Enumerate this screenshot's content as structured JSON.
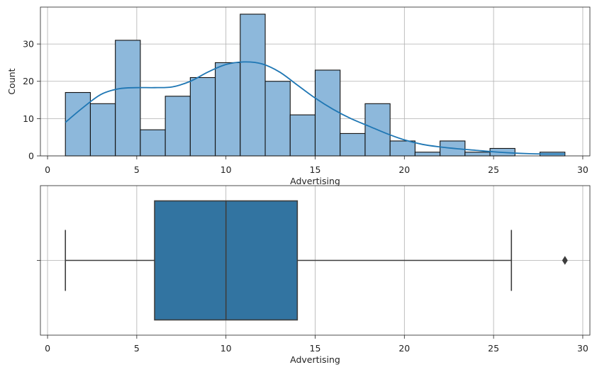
{
  "chart_data": [
    {
      "type": "bar",
      "subtype": "histogram-with-kde",
      "bin_edges": [
        1,
        2.4,
        3.8,
        5.2,
        6.6,
        8.0,
        9.4,
        10.8,
        12.2,
        13.6,
        15.0,
        16.4,
        17.8,
        19.2,
        20.6,
        22.0,
        23.4,
        24.8,
        26.2,
        27.6,
        29.0
      ],
      "values": [
        17,
        14,
        31,
        7,
        16,
        21,
        25,
        38,
        20,
        11,
        23,
        6,
        14,
        4,
        1,
        4,
        1,
        2,
        0,
        1
      ],
      "kde": {
        "x": [
          1,
          2,
          3,
          4,
          5,
          6,
          7,
          8,
          9,
          10,
          11,
          12,
          13,
          14,
          15,
          16,
          17,
          18,
          19,
          20,
          21,
          22,
          23,
          24,
          25,
          26,
          27,
          28,
          29
        ],
        "y": [
          9,
          13,
          16.5,
          18,
          18.3,
          18.3,
          18.5,
          20,
          22.5,
          24.5,
          25.2,
          24.7,
          22.5,
          19,
          15.5,
          12.5,
          10,
          8,
          6,
          4.3,
          3.1,
          2.4,
          1.9,
          1.5,
          1.1,
          0.8,
          0.6,
          0.5,
          0.5
        ]
      },
      "xlabel": "Advertising",
      "ylabel": "Count",
      "xlim": [
        -0.4,
        30.4
      ],
      "ylim": [
        0,
        39.9
      ],
      "xticks": [
        0,
        5,
        10,
        15,
        20,
        25,
        30
      ],
      "yticks": [
        0,
        10,
        20,
        30
      ],
      "grid": true,
      "colors": {
        "bar_fill": "#8db8db",
        "bar_edge": "#111111",
        "kde_line": "#1f77b4"
      }
    },
    {
      "type": "boxplot",
      "orientation": "horizontal",
      "min": 1,
      "q1": 6,
      "median": 10,
      "q3": 14,
      "max": 26,
      "outliers": [
        29
      ],
      "xlabel": "Advertising",
      "xlim": [
        -0.4,
        30.4
      ],
      "xticks": [
        0,
        5,
        10,
        15,
        20,
        25,
        30
      ],
      "grid": true,
      "colors": {
        "box_fill": "#3274a1",
        "lines": "#3d3d3d"
      }
    }
  ]
}
